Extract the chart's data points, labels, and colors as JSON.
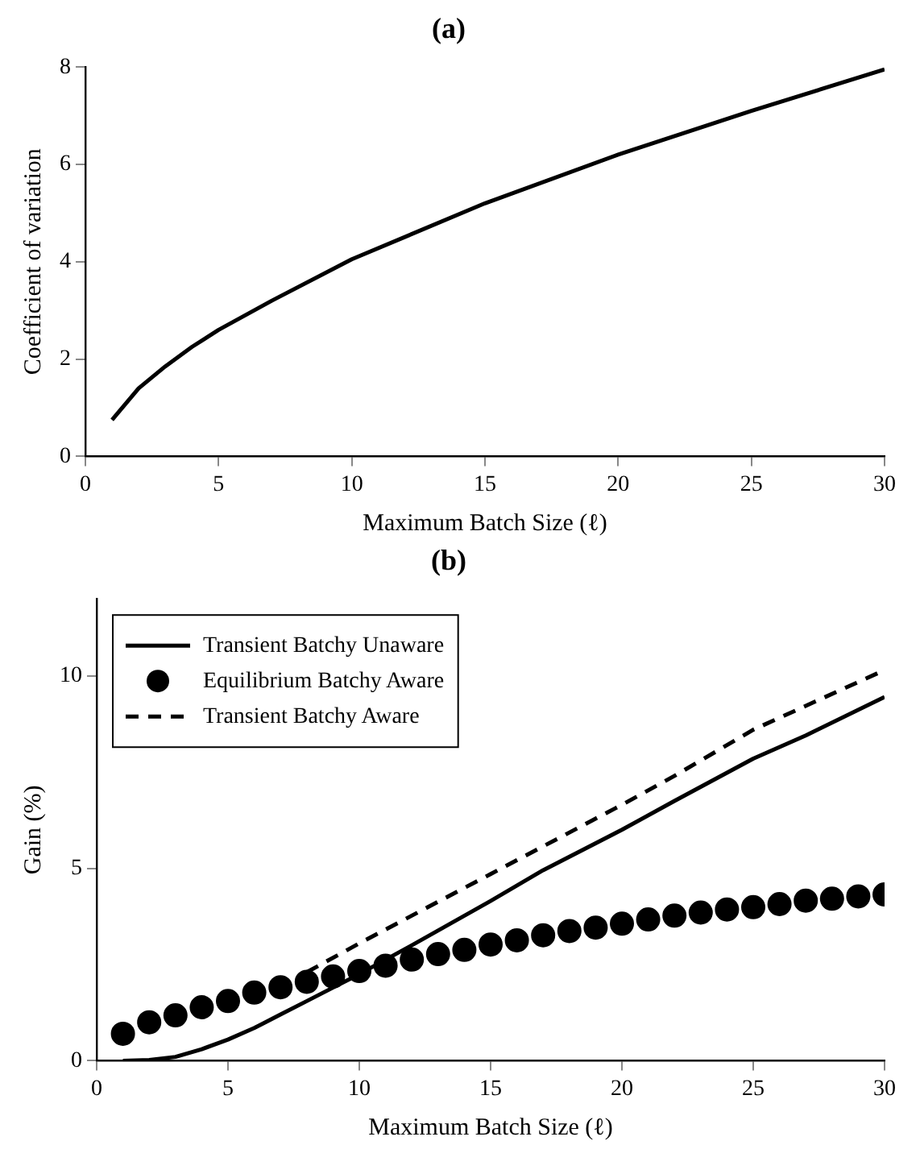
{
  "chart_data": [
    {
      "type": "line",
      "title": "(a)",
      "xlabel": "Maximum Batch Size (ℓ)",
      "ylabel": "Coefficient of variation",
      "xlim": [
        0,
        30
      ],
      "xticks": [
        0,
        5,
        10,
        15,
        20,
        25,
        30
      ],
      "ylim": [
        0,
        8
      ],
      "yticks": [
        0,
        2,
        4,
        6,
        8
      ],
      "grid": false,
      "legend": false,
      "line_style": "solid",
      "marker": "none",
      "series": [
        {
          "color": "#000000",
          "x": [
            1,
            2,
            3,
            4,
            5,
            7,
            10,
            15,
            20,
            25,
            30
          ],
          "values": [
            0.75,
            1.4,
            1.85,
            2.25,
            2.6,
            3.2,
            4.05,
            5.2,
            6.2,
            7.1,
            7.95
          ]
        }
      ]
    },
    {
      "type": "line",
      "title": "(b)",
      "xlabel": "Maximum Batch Size (ℓ)",
      "ylabel": "Gain (%)",
      "xlim": [
        0,
        30
      ],
      "xticks": [
        0,
        5,
        10,
        15,
        20,
        25,
        30
      ],
      "ylim": [
        0,
        12
      ],
      "yticks": [
        0,
        5,
        10
      ],
      "grid": false,
      "legend": "top left",
      "series": [
        {
          "name": "Transient Batchy Unaware",
          "type": "line",
          "line_style": "solid",
          "marker": "none",
          "color": "#000000",
          "x": [
            1,
            2,
            3,
            4,
            5,
            6,
            7,
            8,
            9,
            10,
            12,
            15,
            17,
            20,
            22,
            25,
            27,
            30
          ],
          "values": [
            0,
            0.02,
            0.1,
            0.3,
            0.55,
            0.85,
            1.2,
            1.55,
            1.9,
            2.25,
            3.0,
            4.15,
            4.95,
            6.0,
            6.75,
            7.85,
            8.45,
            9.45
          ]
        },
        {
          "name": "Equilibrium Batchy Aware",
          "type": "scatter",
          "marker": "circle",
          "color": "#000000",
          "x": [
            1,
            2,
            3,
            4,
            5,
            6,
            7,
            8,
            9,
            10,
            11,
            12,
            13,
            14,
            15,
            16,
            17,
            18,
            19,
            20,
            21,
            22,
            23,
            24,
            25,
            26,
            27,
            28,
            29,
            30
          ],
          "values": [
            0.7,
            1.0,
            1.18,
            1.39,
            1.55,
            1.77,
            1.91,
            2.05,
            2.19,
            2.33,
            2.47,
            2.63,
            2.77,
            2.88,
            3.02,
            3.13,
            3.26,
            3.37,
            3.46,
            3.56,
            3.67,
            3.77,
            3.85,
            3.93,
            3.99,
            4.07,
            4.16,
            4.21,
            4.27,
            4.32
          ]
        },
        {
          "name": "Transient Batchy Aware",
          "type": "line",
          "line_style": "dashed",
          "marker": "none",
          "color": "#000000",
          "x": [
            8,
            10,
            15,
            20,
            22,
            25,
            30
          ],
          "values": [
            2.3,
            3.05,
            4.85,
            6.65,
            7.4,
            8.6,
            10.15
          ]
        }
      ]
    }
  ]
}
